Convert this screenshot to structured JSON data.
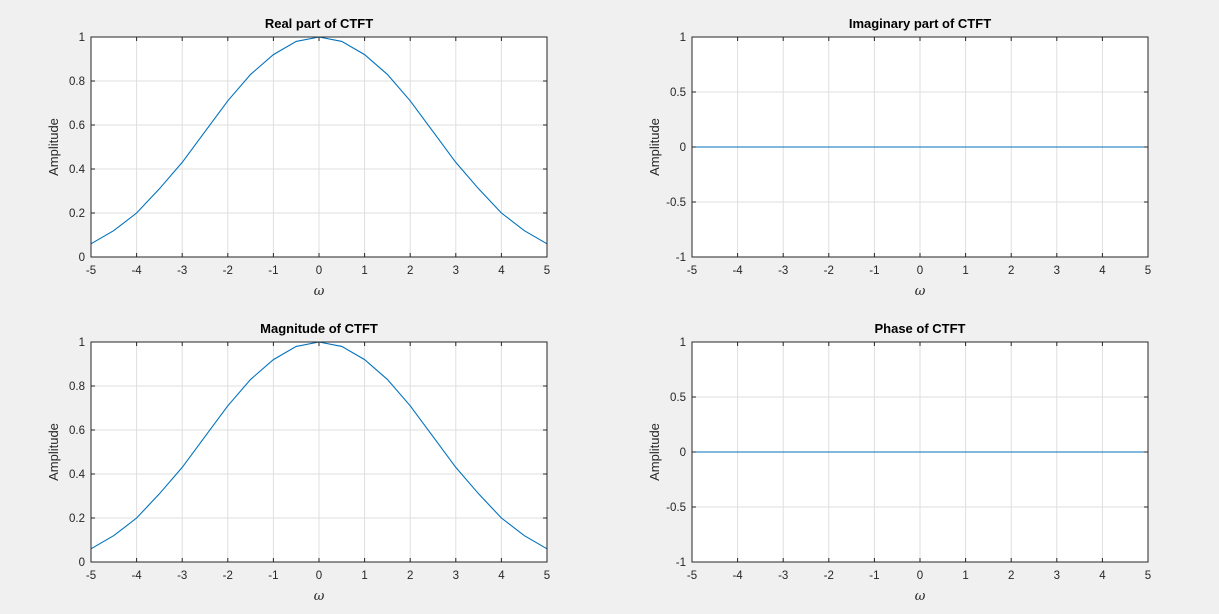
{
  "chart_data": [
    {
      "type": "line",
      "title": "Real part of CTFT",
      "xlabel": "ω",
      "ylabel": "Amplitude",
      "xlim": [
        -5,
        5
      ],
      "ylim": [
        0,
        1
      ],
      "xticks": [
        -5,
        -4,
        -3,
        -2,
        -1,
        0,
        1,
        2,
        3,
        4,
        5
      ],
      "yticks": [
        0,
        0.2,
        0.4,
        0.6,
        0.8,
        1
      ],
      "ytick_labels": [
        "0",
        "0.2",
        "0.4",
        "0.6",
        "0.8",
        "1"
      ],
      "grid": true,
      "series": [
        {
          "color": "#0072bd",
          "x": [
            -5,
            -4.5,
            -4,
            -3.5,
            -3,
            -2.5,
            -2,
            -1.5,
            -1,
            -0.5,
            0,
            0.5,
            1,
            1.5,
            2,
            2.5,
            3,
            3.5,
            4,
            4.5,
            5
          ],
          "y": [
            0.06,
            0.12,
            0.2,
            0.31,
            0.43,
            0.57,
            0.71,
            0.83,
            0.92,
            0.98,
            1.0,
            0.98,
            0.92,
            0.83,
            0.71,
            0.57,
            0.43,
            0.31,
            0.2,
            0.12,
            0.06
          ]
        }
      ]
    },
    {
      "type": "line",
      "title": "Imaginary part of CTFT",
      "xlabel": "ω",
      "ylabel": "Amplitude",
      "xlim": [
        -5,
        5
      ],
      "ylim": [
        -1,
        1
      ],
      "xticks": [
        -5,
        -4,
        -3,
        -2,
        -1,
        0,
        1,
        2,
        3,
        4,
        5
      ],
      "yticks": [
        -1,
        -0.5,
        0,
        0.5,
        1
      ],
      "ytick_labels": [
        "-1",
        "-0.5",
        "0",
        "0.5",
        "1"
      ],
      "grid": true,
      "series": [
        {
          "color": "#0072bd",
          "x": [
            -5,
            5
          ],
          "y": [
            0,
            0
          ]
        }
      ]
    },
    {
      "type": "line",
      "title": "Magnitude of CTFT",
      "xlabel": "ω",
      "ylabel": "Amplitude",
      "xlim": [
        -5,
        5
      ],
      "ylim": [
        0,
        1
      ],
      "xticks": [
        -5,
        -4,
        -3,
        -2,
        -1,
        0,
        1,
        2,
        3,
        4,
        5
      ],
      "yticks": [
        0,
        0.2,
        0.4,
        0.6,
        0.8,
        1
      ],
      "ytick_labels": [
        "0",
        "0.2",
        "0.4",
        "0.6",
        "0.8",
        "1"
      ],
      "grid": true,
      "series": [
        {
          "color": "#0072bd",
          "x": [
            -5,
            -4.5,
            -4,
            -3.5,
            -3,
            -2.5,
            -2,
            -1.5,
            -1,
            -0.5,
            0,
            0.5,
            1,
            1.5,
            2,
            2.5,
            3,
            3.5,
            4,
            4.5,
            5
          ],
          "y": [
            0.06,
            0.12,
            0.2,
            0.31,
            0.43,
            0.57,
            0.71,
            0.83,
            0.92,
            0.98,
            1.0,
            0.98,
            0.92,
            0.83,
            0.71,
            0.57,
            0.43,
            0.31,
            0.2,
            0.12,
            0.06
          ]
        }
      ]
    },
    {
      "type": "line",
      "title": "Phase of CTFT",
      "xlabel": "ω",
      "ylabel": "Amplitude",
      "xlim": [
        -5,
        5
      ],
      "ylim": [
        -1,
        1
      ],
      "xticks": [
        -5,
        -4,
        -3,
        -2,
        -1,
        0,
        1,
        2,
        3,
        4,
        5
      ],
      "yticks": [
        -1,
        -0.5,
        0,
        0.5,
        1
      ],
      "ytick_labels": [
        "-1",
        "-0.5",
        "0",
        "0.5",
        "1"
      ],
      "grid": true,
      "series": [
        {
          "color": "#0072bd",
          "x": [
            -5,
            5
          ],
          "y": [
            0,
            0
          ]
        }
      ]
    }
  ]
}
